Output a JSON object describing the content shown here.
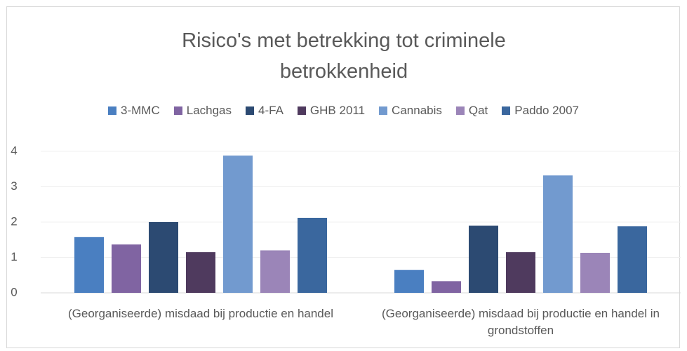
{
  "chart_data": {
    "type": "bar",
    "title": "Risico's met betrekking tot criminele betrokkenheid",
    "categories": [
      "(Georganiseerde) misdaad bij productie en handel",
      "(Georganiseerde) misdaad bij productie en handel in grondstoffen"
    ],
    "series": [
      {
        "name": "3-MMC",
        "color": "#4a7fc1",
        "values": [
          1.58,
          0.65
        ]
      },
      {
        "name": "Lachgas",
        "color": "#8064a2",
        "values": [
          1.37,
          0.33
        ]
      },
      {
        "name": "4-FA",
        "color": "#2c4a72",
        "values": [
          2.0,
          1.9
        ]
      },
      {
        "name": "GHB 2011",
        "color": "#4f3a5e",
        "values": [
          1.15,
          1.15
        ]
      },
      {
        "name": "Cannabis",
        "color": "#729acf",
        "values": [
          3.88,
          3.32
        ]
      },
      {
        "name": "Qat",
        "color": "#9b85b8",
        "values": [
          1.2,
          1.13
        ]
      },
      {
        "name": "Paddo 2007",
        "color": "#3a679e",
        "values": [
          2.12,
          1.88
        ]
      }
    ],
    "ylim": [
      0,
      4
    ],
    "yticks": [
      0,
      1,
      2,
      3,
      4
    ],
    "grid": true,
    "legend": "top"
  }
}
